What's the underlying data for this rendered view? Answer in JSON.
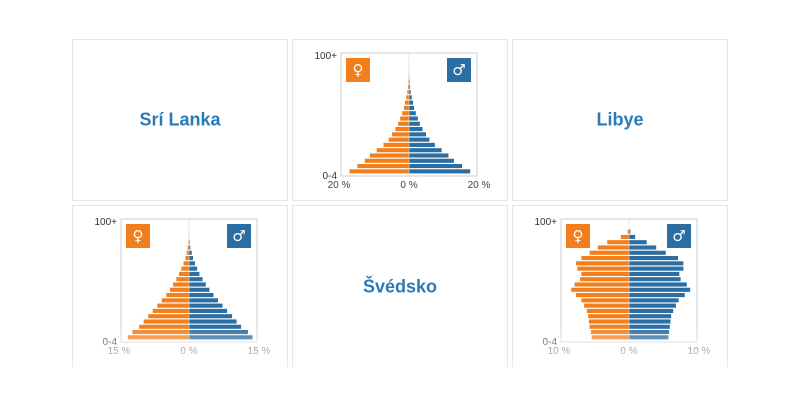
{
  "colors": {
    "female": "#f27f1b",
    "male": "#2b6ea3",
    "title": "#2a7ab8",
    "frame": "#cfcfcf"
  },
  "icons": {
    "female": "♀",
    "male": "♂"
  },
  "cards": [
    {
      "type": "name",
      "name": "Srí Lanka"
    },
    {
      "type": "pyramid",
      "chart": "pyr_top"
    },
    {
      "type": "name",
      "name": "Libye"
    },
    {
      "type": "pyramid",
      "chart": "pyr_left"
    },
    {
      "type": "name",
      "name": "Švédsko"
    },
    {
      "type": "pyramid",
      "chart": "pyr_right"
    }
  ],
  "chart_data": [
    {
      "id": "pyr_top",
      "type": "bar",
      "orientation": "horizontal-pyramid",
      "y_top_label": "100+",
      "y_bottom_label": "0-4",
      "x_ticks": [
        "20 %",
        "0 %",
        "20 %"
      ],
      "xlim": [
        -20,
        20
      ],
      "female": [
        17.5,
        15.2,
        13.0,
        11.5,
        9.5,
        7.5,
        6.0,
        5.0,
        4.0,
        3.2,
        2.6,
        2.0,
        1.5,
        1.2,
        0.8,
        0.5,
        0.3,
        0.2,
        0.1,
        0.05,
        0.02
      ],
      "male": [
        18.0,
        15.6,
        13.2,
        11.6,
        9.6,
        7.6,
        6.0,
        5.0,
        4.0,
        3.2,
        2.6,
        2.0,
        1.5,
        1.2,
        0.8,
        0.5,
        0.3,
        0.2,
        0.1,
        0.05,
        0.02
      ]
    },
    {
      "id": "pyr_left",
      "type": "bar",
      "orientation": "horizontal-pyramid",
      "y_top_label": "100+",
      "y_bottom_label": "0-4",
      "x_ticks": [
        "15 %",
        "0 %",
        "15 %"
      ],
      "xlim": [
        -15,
        15
      ],
      "female": [
        13.5,
        12.5,
        11.0,
        10.0,
        9.0,
        8.0,
        7.0,
        6.0,
        5.0,
        4.2,
        3.5,
        2.8,
        2.2,
        1.7,
        1.2,
        0.8,
        0.5,
        0.3,
        0.15,
        0.05,
        0.02
      ],
      "male": [
        14.0,
        13.0,
        11.5,
        10.5,
        9.5,
        8.4,
        7.4,
        6.4,
        5.4,
        4.5,
        3.7,
        3.0,
        2.3,
        1.8,
        1.3,
        0.9,
        0.6,
        0.3,
        0.15,
        0.05,
        0.02
      ]
    },
    {
      "id": "pyr_right",
      "type": "bar",
      "orientation": "horizontal-pyramid",
      "y_top_label": "100+",
      "y_bottom_label": "0-4",
      "x_ticks": [
        "10 %",
        "0 %",
        "10 %"
      ],
      "xlim": [
        -10,
        10
      ],
      "female": [
        5.5,
        5.6,
        5.8,
        5.9,
        6.0,
        6.2,
        6.6,
        7.0,
        7.8,
        8.5,
        8.0,
        7.2,
        7.0,
        7.6,
        7.8,
        7.0,
        5.8,
        4.6,
        3.2,
        1.2,
        0.2
      ],
      "male": [
        5.8,
        5.9,
        6.0,
        6.1,
        6.2,
        6.5,
        6.9,
        7.3,
        8.2,
        9.0,
        8.5,
        7.6,
        7.4,
        8.0,
        8.0,
        7.2,
        5.4,
        4.0,
        2.6,
        0.9,
        0.2
      ]
    }
  ]
}
